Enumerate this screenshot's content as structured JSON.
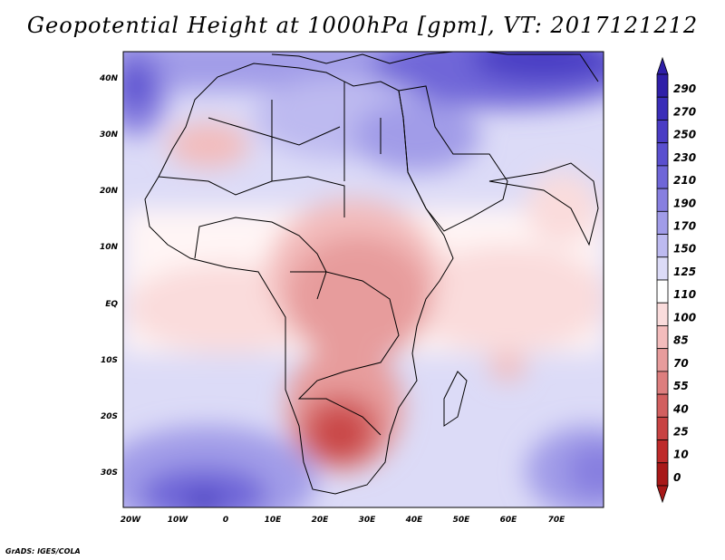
{
  "title": "Geopotential Height at 1000hPa [gpm], VT: 2017121212",
  "credit": "GrADS: IGES/COLA",
  "axes": {
    "lon_ticks": [
      "20W",
      "10W",
      "0",
      "10E",
      "20E",
      "30E",
      "40E",
      "50E",
      "60E",
      "70E"
    ],
    "lat_ticks": [
      "40N",
      "30N",
      "20N",
      "10N",
      "EQ",
      "10S",
      "20S",
      "30S"
    ]
  },
  "colorbar": {
    "levels": [
      "290",
      "270",
      "250",
      "230",
      "210",
      "190",
      "170",
      "150",
      "125",
      "110",
      "100",
      "85",
      "70",
      "55",
      "40",
      "25",
      "10",
      "0"
    ],
    "colors": [
      "#2f1fa8",
      "#3a2db8",
      "#4a3cc4",
      "#5a4fcf",
      "#6f66d8",
      "#877fe0",
      "#a19ce8",
      "#bdbaf0",
      "#dcdbf7",
      "#ffffff",
      "#fadcdc",
      "#f3bcbc",
      "#e79c9c",
      "#dd7e7e",
      "#d25f5f",
      "#c84343",
      "#be2a2a",
      "#a81818"
    ]
  }
}
